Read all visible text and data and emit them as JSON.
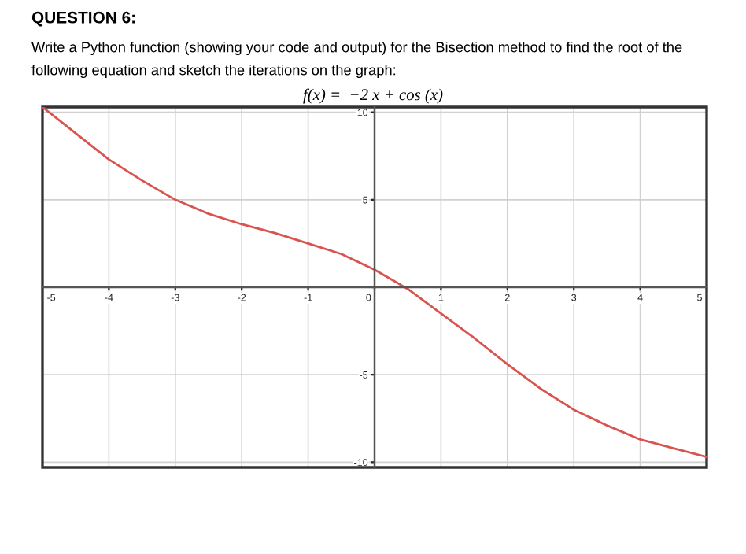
{
  "chart_data": {
    "type": "line",
    "title": "QUESTION 6:",
    "subtitle": "Write a Python function (showing your code and output) for the Bisection method to find the root of the\nfollowing equation and sketch the iterations on the graph:",
    "annotations": [
      "f(x) =  −2 x + cos (x)"
    ],
    "x": [
      -5,
      -4.5,
      -4,
      -3.5,
      -3,
      -2.5,
      -2,
      -1.5,
      -1,
      -0.5,
      0,
      0.5,
      1,
      1.5,
      2,
      2.5,
      3,
      3.5,
      4,
      4.5,
      5
    ],
    "series": [
      {
        "color": "#d9534f",
        "values": [
          10.3,
          8.8,
          7.3,
          6.1,
          5.0,
          4.2,
          3.6,
          3.1,
          2.5,
          1.9,
          1.0,
          -0.1,
          -1.5,
          -2.9,
          -4.4,
          -5.8,
          -7.0,
          -7.9,
          -8.7,
          -9.2,
          -9.7
        ]
      }
    ],
    "xlim": [
      -5,
      5
    ],
    "ylim": [
      -10.3,
      10.3
    ],
    "xticks": [
      -5,
      -4,
      -3,
      -2,
      -1,
      0,
      1,
      2,
      3,
      4,
      5
    ],
    "yticks": [
      -10,
      -5,
      {
        "value": 0,
        "label": null
      },
      5,
      10
    ],
    "grid": true,
    "marker": "none",
    "line_style": "solid"
  }
}
